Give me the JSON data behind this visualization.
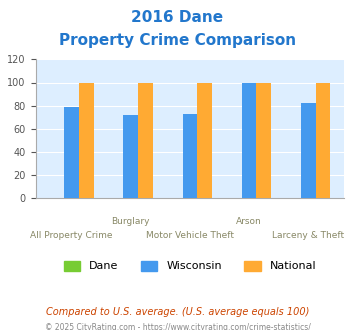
{
  "title_line1": "2016 Dane",
  "title_line2": "Property Crime Comparison",
  "title_color": "#2277cc",
  "categories": [
    "All Property Crime",
    "Burglary",
    "Motor Vehicle Theft",
    "Arson",
    "Larceny & Theft"
  ],
  "x_labels_row1": [
    "",
    "Burglary",
    "",
    "Arson",
    ""
  ],
  "x_labels_row2": [
    "All Property Crime",
    "",
    "Motor Vehicle Theft",
    "",
    "Larceny & Theft"
  ],
  "dane_values": [
    0,
    0,
    0,
    0,
    0
  ],
  "wisconsin_values": [
    79,
    72,
    73,
    100,
    82
  ],
  "national_values": [
    100,
    100,
    100,
    100,
    100
  ],
  "dane_color": "#77cc33",
  "wisconsin_color": "#4499ee",
  "national_color": "#ffaa33",
  "ylim": [
    0,
    120
  ],
  "yticks": [
    0,
    20,
    40,
    60,
    80,
    100,
    120
  ],
  "background_color": "#ddeeff",
  "legend_labels": [
    "Dane",
    "Wisconsin",
    "National"
  ],
  "footnote1": "Compared to U.S. average. (U.S. average equals 100)",
  "footnote2": "© 2025 CityRating.com - https://www.cityrating.com/crime-statistics/",
  "footnote1_color": "#cc4400",
  "footnote2_color": "#888888"
}
